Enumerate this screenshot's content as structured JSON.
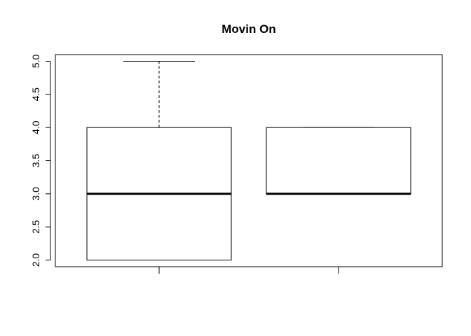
{
  "chart_data": {
    "type": "boxplot",
    "title": "Movin On",
    "xlabel": "",
    "ylabel": "",
    "ylim": [
      1.9,
      5.1
    ],
    "yticks": [
      2.0,
      2.5,
      3.0,
      3.5,
      4.0,
      4.5,
      5.0
    ],
    "ytick_labels": [
      "2.0",
      "2.5",
      "3.0",
      "3.5",
      "4.0",
      "4.5",
      "5.0"
    ],
    "grid": false,
    "legend": "none",
    "boxes": [
      {
        "whisker_low": 2,
        "q1": 2,
        "median": 3,
        "q3": 4,
        "whisker_high": 5
      },
      {
        "whisker_low": 3,
        "q1": 3,
        "median": 3,
        "q3": 4,
        "whisker_high": 4
      }
    ],
    "colors": {
      "box_fill": "#ffffff",
      "stroke": "#000000"
    }
  }
}
